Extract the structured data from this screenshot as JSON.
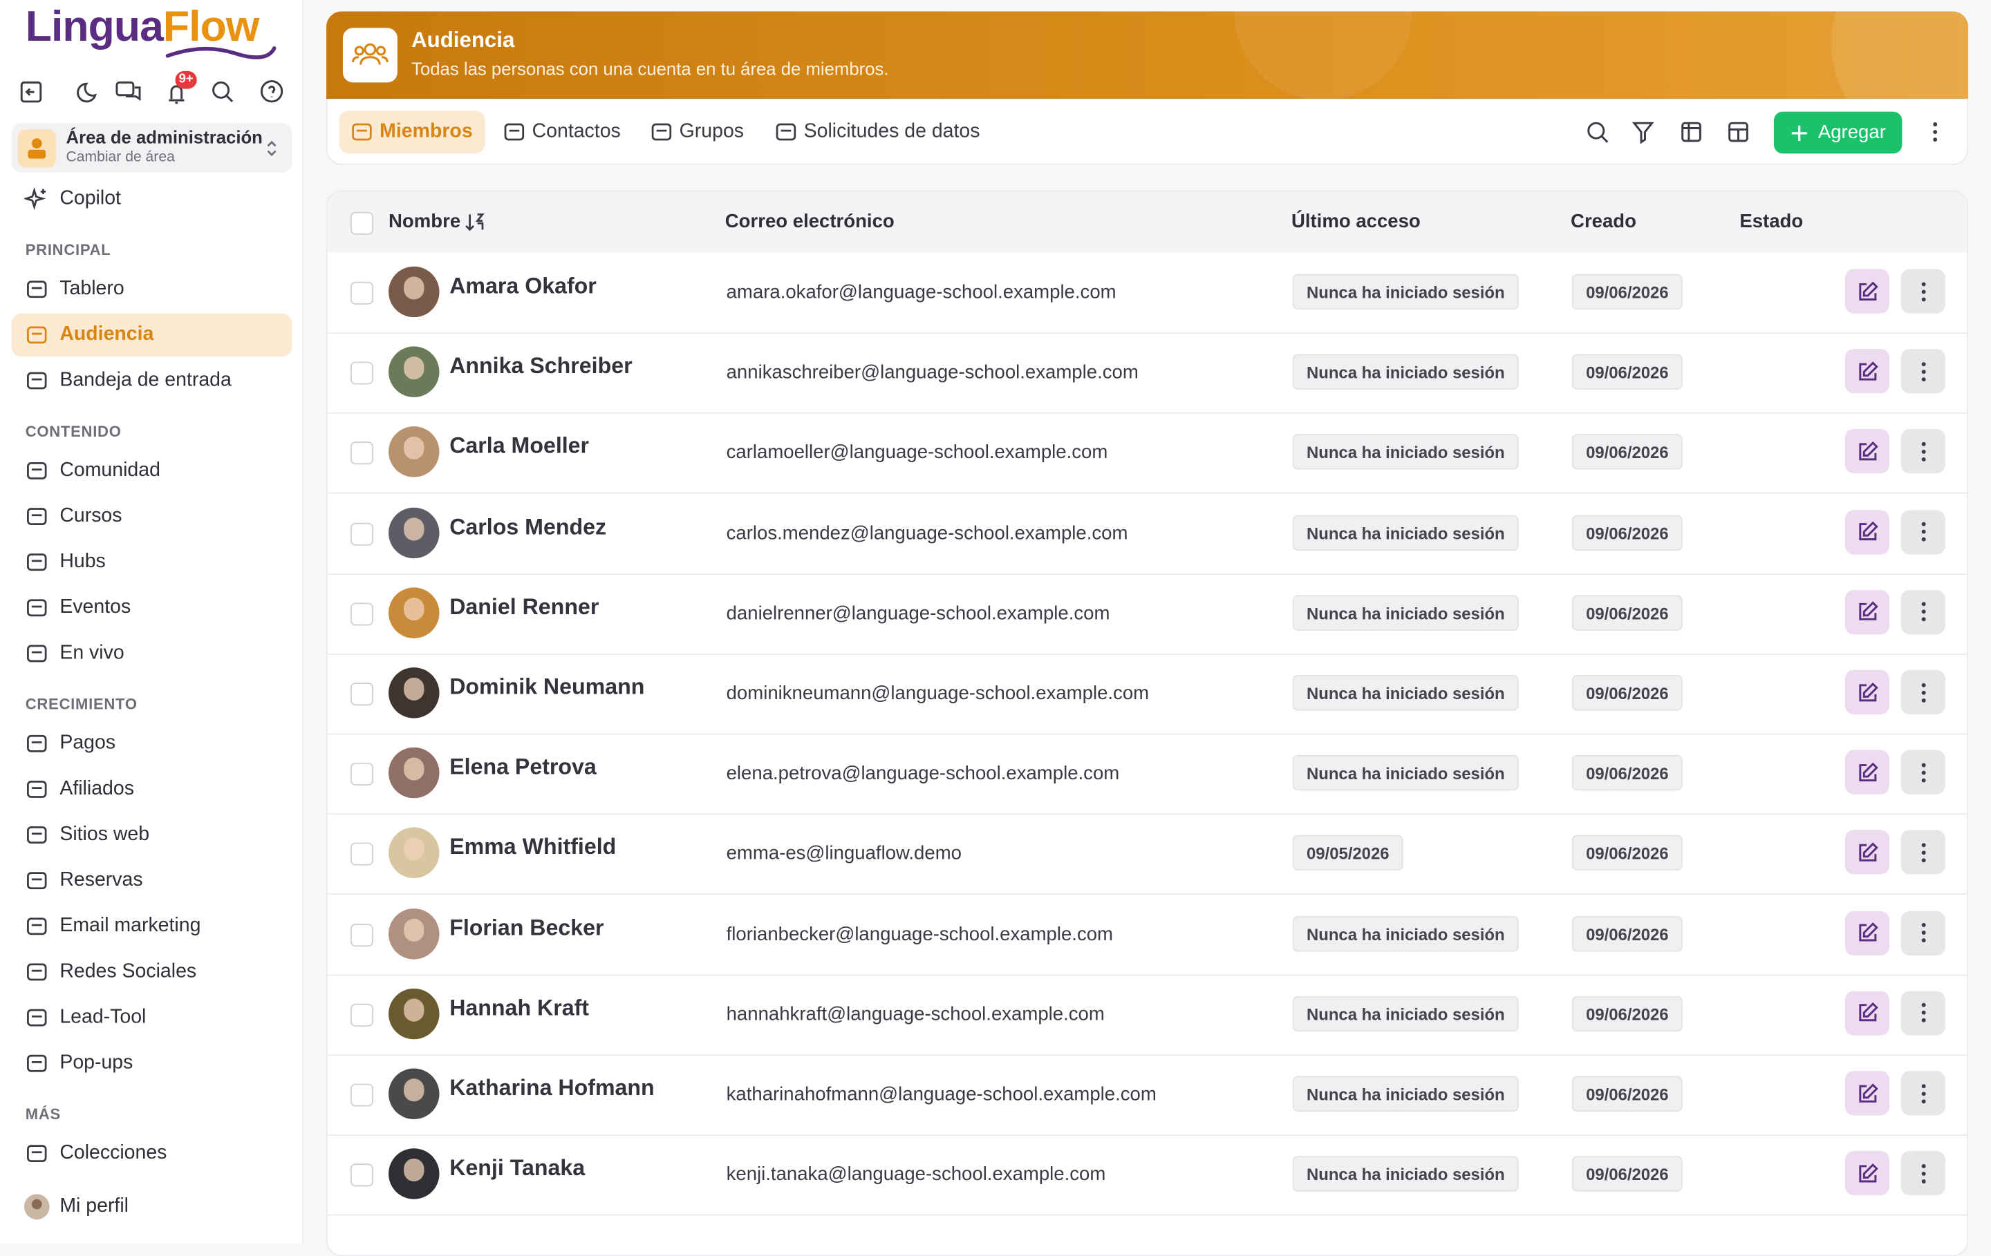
{
  "sidebar": {
    "logo": [
      "Lingua",
      "Flow"
    ],
    "badge": "9+",
    "area": {
      "title": "Área de administración",
      "subtitle": "Cambiar de área"
    },
    "copilot": "Copilot",
    "sections": [
      {
        "heading": "PRINCIPAL",
        "items": [
          "Tablero",
          "Audiencia",
          "Bandeja de entrada"
        ]
      },
      {
        "heading": "CONTENIDO",
        "items": [
          "Comunidad",
          "Cursos",
          "Hubs",
          "Eventos",
          "En vivo"
        ]
      },
      {
        "heading": "CRECIMIENTO",
        "items": [
          "Pagos",
          "Afiliados",
          "Sitios web",
          "Reservas",
          "Email marketing",
          "Redes Sociales",
          "Lead-Tool",
          "Pop-ups"
        ]
      },
      {
        "heading": "MÁS",
        "items": [
          "Colecciones"
        ]
      }
    ],
    "profile": "Mi perfil"
  },
  "header": {
    "title": "Audiencia",
    "subtitle": "Todas las personas con una cuenta en tu área de miembros."
  },
  "tabs": [
    "Miembros",
    "Contactos",
    "Grupos",
    "Solicitudes de datos"
  ],
  "add_button": "Agregar",
  "table": {
    "columns": [
      "Nombre",
      "Correo electrónico",
      "Último acceso",
      "Creado",
      "Estado"
    ],
    "rows": [
      [
        "Amara Okafor",
        "amara.okafor@language-school.example.com",
        "Nunca ha iniciado sesión",
        "09/06/2026"
      ],
      [
        "Annika Schreiber",
        "annikaschreiber@language-school.example.com",
        "Nunca ha iniciado sesión",
        "09/06/2026"
      ],
      [
        "Carla Moeller",
        "carlamoeller@language-school.example.com",
        "Nunca ha iniciado sesión",
        "09/06/2026"
      ],
      [
        "Carlos Mendez",
        "carlos.mendez@language-school.example.com",
        "Nunca ha iniciado sesión",
        "09/06/2026"
      ],
      [
        "Daniel Renner",
        "danielrenner@language-school.example.com",
        "Nunca ha iniciado sesión",
        "09/06/2026"
      ],
      [
        "Dominik Neumann",
        "dominikneumann@language-school.example.com",
        "Nunca ha iniciado sesión",
        "09/06/2026"
      ],
      [
        "Elena Petrova",
        "elena.petrova@language-school.example.com",
        "Nunca ha iniciado sesión",
        "09/06/2026"
      ],
      [
        "Emma Whitfield",
        "emma-es@linguaflow.demo",
        "09/05/2026",
        "09/06/2026"
      ],
      [
        "Florian Becker",
        "florianbecker@language-school.example.com",
        "Nunca ha iniciado sesión",
        "09/06/2026"
      ],
      [
        "Hannah Kraft",
        "hannahkraft@language-school.example.com",
        "Nunca ha iniciado sesión",
        "09/06/2026"
      ],
      [
        "Katharina Hofmann",
        "katharinahofmann@language-school.example.com",
        "Nunca ha iniciado sesión",
        "09/06/2026"
      ],
      [
        "Kenji Tanaka",
        "kenji.tanaka@language-school.example.com",
        "Nunca ha iniciado sesión",
        "09/06/2026"
      ]
    ]
  }
}
